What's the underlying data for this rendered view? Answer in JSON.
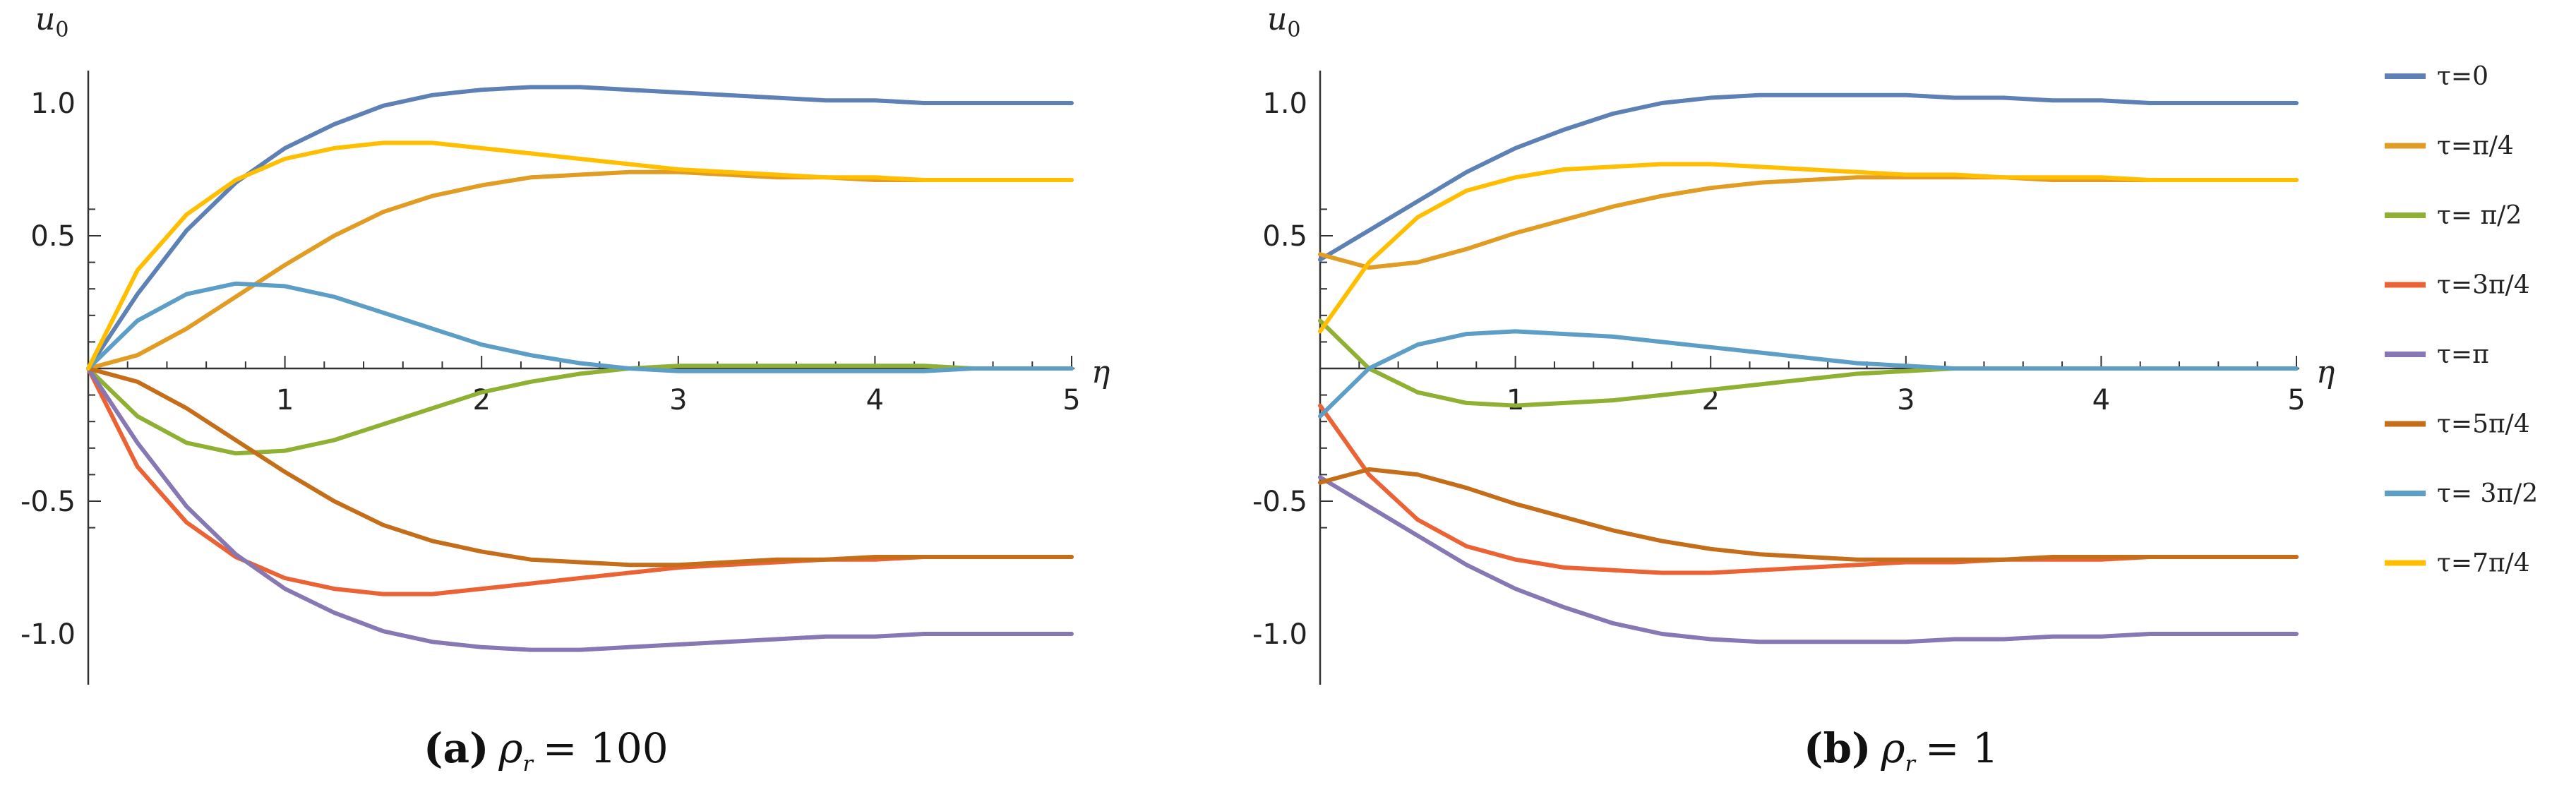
{
  "chart_data": [
    {
      "type": "line",
      "id": "a",
      "caption_label": "(a)",
      "caption_var": "ρ",
      "caption_sub": "r",
      "caption_rest": "= 100",
      "ylabel": "u",
      "ylabel_sub": "0",
      "xlabel": "η",
      "xlim": [
        0,
        5
      ],
      "ylim": [
        -1.2,
        1.2
      ],
      "xticks": [
        1,
        2,
        3,
        4,
        5
      ],
      "xtick_labels": [
        "1",
        "2",
        "3",
        "4",
        "5"
      ],
      "yticks": [
        1.0,
        0.5,
        -0.5,
        -1.0
      ],
      "ytick_labels": [
        "1.0",
        "0.5",
        "-0.5",
        "-1.0"
      ],
      "x": [
        0,
        0.25,
        0.5,
        0.75,
        1,
        1.25,
        1.5,
        1.75,
        2,
        2.25,
        2.5,
        2.75,
        3,
        3.25,
        3.5,
        3.75,
        4,
        4.25,
        4.5,
        4.75,
        5
      ],
      "series": [
        {
          "name": "τ=0",
          "color": "#5E81B5",
          "values": [
            0,
            0.28,
            0.52,
            0.7,
            0.83,
            0.92,
            0.99,
            1.03,
            1.05,
            1.06,
            1.06,
            1.05,
            1.04,
            1.03,
            1.02,
            1.01,
            1.01,
            1.0,
            1.0,
            1.0,
            1.0
          ]
        },
        {
          "name": "τ=π/4",
          "color": "#E19C24",
          "values": [
            0,
            0.05,
            0.15,
            0.27,
            0.39,
            0.5,
            0.59,
            0.65,
            0.69,
            0.72,
            0.73,
            0.74,
            0.74,
            0.73,
            0.72,
            0.72,
            0.71,
            0.71,
            0.71,
            0.71,
            0.71
          ]
        },
        {
          "name": "τ= π/2",
          "color": "#8FB032",
          "values": [
            0,
            -0.18,
            -0.28,
            -0.32,
            -0.31,
            -0.27,
            -0.21,
            -0.15,
            -0.09,
            -0.05,
            -0.02,
            0.0,
            0.01,
            0.01,
            0.01,
            0.01,
            0.01,
            0.01,
            0.0,
            0.0,
            0.0
          ]
        },
        {
          "name": "τ=3π/4",
          "color": "#EB6235",
          "values": [
            0,
            -0.37,
            -0.58,
            -0.71,
            -0.79,
            -0.83,
            -0.85,
            -0.85,
            -0.83,
            -0.81,
            -0.79,
            -0.77,
            -0.75,
            -0.74,
            -0.73,
            -0.72,
            -0.72,
            -0.71,
            -0.71,
            -0.71,
            -0.71
          ]
        },
        {
          "name": "τ=π",
          "color": "#8778B3",
          "values": [
            0,
            -0.28,
            -0.52,
            -0.7,
            -0.83,
            -0.92,
            -0.99,
            -1.03,
            -1.05,
            -1.06,
            -1.06,
            -1.05,
            -1.04,
            -1.03,
            -1.02,
            -1.01,
            -1.01,
            -1.0,
            -1.0,
            -1.0,
            -1.0
          ]
        },
        {
          "name": "τ=5π/4",
          "color": "#C56E1A",
          "values": [
            0,
            -0.05,
            -0.15,
            -0.27,
            -0.39,
            -0.5,
            -0.59,
            -0.65,
            -0.69,
            -0.72,
            -0.73,
            -0.74,
            -0.74,
            -0.73,
            -0.72,
            -0.72,
            -0.71,
            -0.71,
            -0.71,
            -0.71,
            -0.71
          ]
        },
        {
          "name": "τ= 3π/2",
          "color": "#5D9EC7",
          "values": [
            0,
            0.18,
            0.28,
            0.32,
            0.31,
            0.27,
            0.21,
            0.15,
            0.09,
            0.05,
            0.02,
            0.0,
            -0.01,
            -0.01,
            -0.01,
            -0.01,
            -0.01,
            -0.01,
            0.0,
            0.0,
            0.0
          ]
        },
        {
          "name": "τ=7π/4",
          "color": "#FFBF00",
          "values": [
            0,
            0.37,
            0.58,
            0.71,
            0.79,
            0.83,
            0.85,
            0.85,
            0.83,
            0.81,
            0.79,
            0.77,
            0.75,
            0.74,
            0.73,
            0.72,
            0.72,
            0.71,
            0.71,
            0.71,
            0.71
          ]
        }
      ]
    },
    {
      "type": "line",
      "id": "b",
      "caption_label": "(b)",
      "caption_var": "ρ",
      "caption_sub": "r",
      "caption_rest": "= 1",
      "ylabel": "u",
      "ylabel_sub": "0",
      "xlabel": "η",
      "xlim": [
        0,
        5
      ],
      "ylim": [
        -1.2,
        1.2
      ],
      "xticks": [
        1,
        2,
        3,
        4,
        5
      ],
      "xtick_labels": [
        "1",
        "2",
        "3",
        "4",
        "5"
      ],
      "yticks": [
        1.0,
        0.5,
        -0.5,
        -1.0
      ],
      "ytick_labels": [
        "1.0",
        "0.5",
        "-0.5",
        "-1.0"
      ],
      "x": [
        0,
        0.25,
        0.5,
        0.75,
        1,
        1.25,
        1.5,
        1.75,
        2,
        2.25,
        2.5,
        2.75,
        3,
        3.25,
        3.5,
        3.75,
        4,
        4.25,
        4.5,
        4.75,
        5
      ],
      "series": [
        {
          "name": "τ=0",
          "color": "#5E81B5",
          "values": [
            0.41,
            0.52,
            0.63,
            0.74,
            0.83,
            0.9,
            0.96,
            1.0,
            1.02,
            1.03,
            1.03,
            1.03,
            1.03,
            1.02,
            1.02,
            1.01,
            1.01,
            1.0,
            1.0,
            1.0,
            1.0
          ]
        },
        {
          "name": "τ=π/4",
          "color": "#E19C24",
          "values": [
            0.43,
            0.38,
            0.4,
            0.45,
            0.51,
            0.56,
            0.61,
            0.65,
            0.68,
            0.7,
            0.71,
            0.72,
            0.72,
            0.72,
            0.72,
            0.71,
            0.71,
            0.71,
            0.71,
            0.71,
            0.71
          ]
        },
        {
          "name": "τ= π/2",
          "color": "#8FB032",
          "values": [
            0.18,
            0.0,
            -0.09,
            -0.13,
            -0.14,
            -0.13,
            -0.12,
            -0.1,
            -0.08,
            -0.06,
            -0.04,
            -0.02,
            -0.01,
            0.0,
            0.0,
            0.0,
            0.0,
            0.0,
            0.0,
            0.0,
            0.0
          ]
        },
        {
          "name": "τ=3π/4",
          "color": "#EB6235",
          "values": [
            -0.14,
            -0.4,
            -0.57,
            -0.67,
            -0.72,
            -0.75,
            -0.76,
            -0.77,
            -0.77,
            -0.76,
            -0.75,
            -0.74,
            -0.73,
            -0.73,
            -0.72,
            -0.72,
            -0.72,
            -0.71,
            -0.71,
            -0.71,
            -0.71
          ]
        },
        {
          "name": "τ=π",
          "color": "#8778B3",
          "values": [
            -0.41,
            -0.52,
            -0.63,
            -0.74,
            -0.83,
            -0.9,
            -0.96,
            -1.0,
            -1.02,
            -1.03,
            -1.03,
            -1.03,
            -1.03,
            -1.02,
            -1.02,
            -1.01,
            -1.01,
            -1.0,
            -1.0,
            -1.0,
            -1.0
          ]
        },
        {
          "name": "τ=5π/4",
          "color": "#C56E1A",
          "values": [
            -0.43,
            -0.38,
            -0.4,
            -0.45,
            -0.51,
            -0.56,
            -0.61,
            -0.65,
            -0.68,
            -0.7,
            -0.71,
            -0.72,
            -0.72,
            -0.72,
            -0.72,
            -0.71,
            -0.71,
            -0.71,
            -0.71,
            -0.71,
            -0.71
          ]
        },
        {
          "name": "τ= 3π/2",
          "color": "#5D9EC7",
          "values": [
            -0.18,
            0.0,
            0.09,
            0.13,
            0.14,
            0.13,
            0.12,
            0.1,
            0.08,
            0.06,
            0.04,
            0.02,
            0.01,
            0.0,
            0.0,
            0.0,
            0.0,
            0.0,
            0.0,
            0.0,
            0.0
          ]
        },
        {
          "name": "τ=7π/4",
          "color": "#FFBF00",
          "values": [
            0.14,
            0.4,
            0.57,
            0.67,
            0.72,
            0.75,
            0.76,
            0.77,
            0.77,
            0.76,
            0.75,
            0.74,
            0.73,
            0.73,
            0.72,
            0.72,
            0.72,
            0.71,
            0.71,
            0.71,
            0.71
          ]
        }
      ]
    }
  ],
  "legend": {
    "placement": "right",
    "items": [
      {
        "label": "τ=0",
        "color": "#5E81B5"
      },
      {
        "label": "τ=π/4",
        "color": "#E19C24"
      },
      {
        "label": "τ= π/2",
        "color": "#8FB032"
      },
      {
        "label": "τ=3π/4",
        "color": "#EB6235"
      },
      {
        "label": "τ=π",
        "color": "#8778B3"
      },
      {
        "label": "τ=5π/4",
        "color": "#C56E1A"
      },
      {
        "label": "τ= 3π/2",
        "color": "#5D9EC7"
      },
      {
        "label": "τ=7π/4",
        "color": "#FFBF00"
      }
    ]
  }
}
